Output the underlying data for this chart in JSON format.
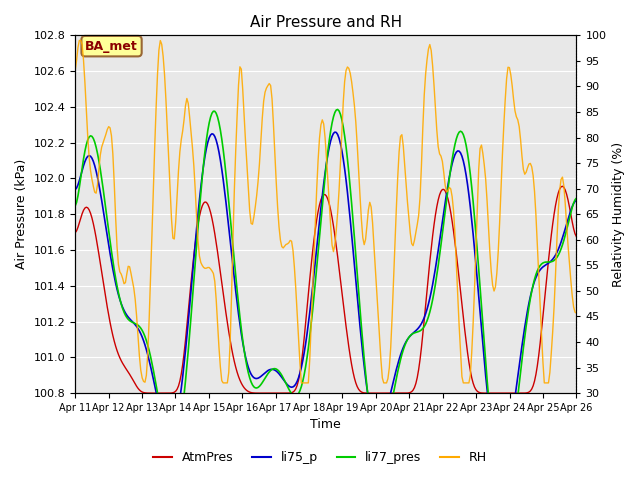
{
  "title": "Air Pressure and RH",
  "xlabel": "Time",
  "ylabel_left": "Air Pressure (kPa)",
  "ylabel_right": "Relativity Humidity (%)",
  "ylim_left": [
    100.8,
    102.8
  ],
  "ylim_right": [
    30,
    100
  ],
  "yticks_left": [
    100.8,
    101.0,
    101.2,
    101.4,
    101.6,
    101.8,
    102.0,
    102.2,
    102.4,
    102.6,
    102.8
  ],
  "yticks_right": [
    30,
    35,
    40,
    45,
    50,
    55,
    60,
    65,
    70,
    75,
    80,
    85,
    90,
    95,
    100
  ],
  "xtick_labels": [
    "Apr 11",
    "Apr 12",
    "Apr 13",
    "Apr 14",
    "Apr 15",
    "Apr 16",
    "Apr 17",
    "Apr 18",
    "Apr 19",
    "Apr 20",
    "Apr 21",
    "Apr 22",
    "Apr 23",
    "Apr 24",
    "Apr 25",
    "Apr 26"
  ],
  "n_points": 360,
  "color_atmpres": "#cc0000",
  "color_li75": "#0000cc",
  "color_li77": "#00cc00",
  "color_rh": "#ffaa00",
  "bg_color": "#e8e8e8",
  "legend_labels": [
    "AtmPres",
    "li75_p",
    "li77_pres",
    "RH"
  ],
  "annotation_text": "BA_met",
  "annotation_bg": "#ffff99",
  "annotation_border": "#996633"
}
